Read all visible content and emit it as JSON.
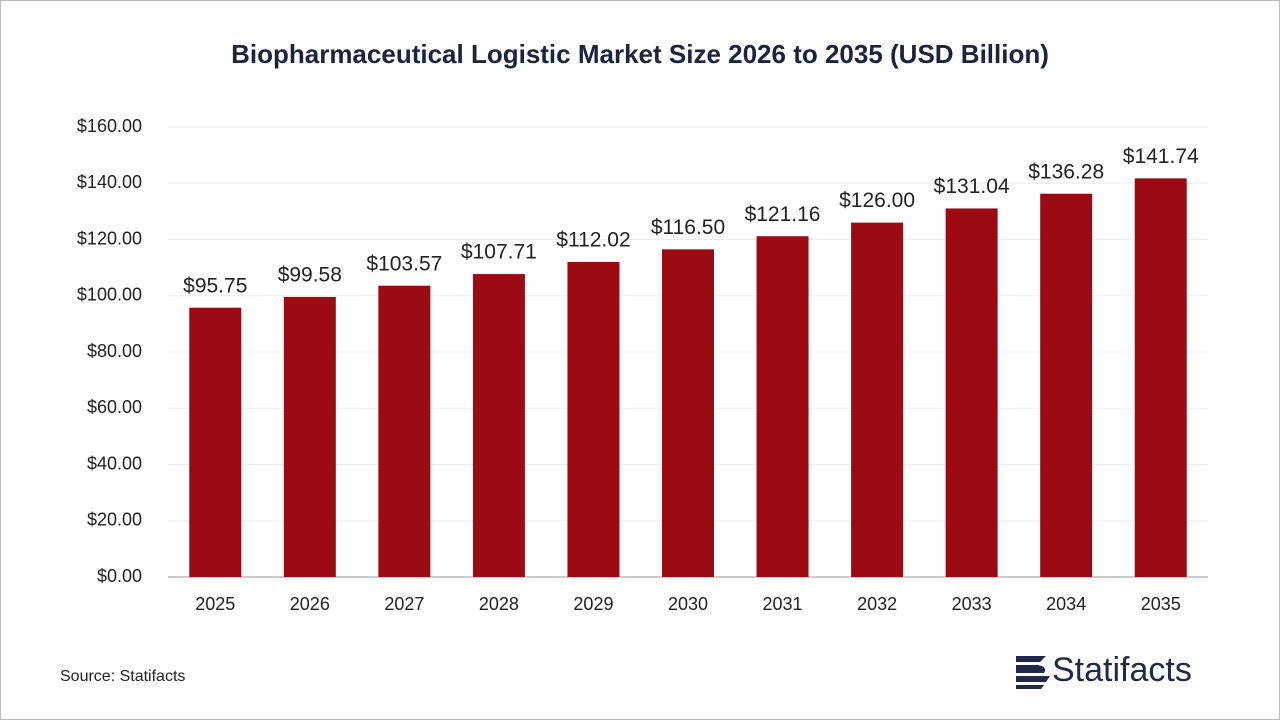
{
  "chart_data": {
    "type": "bar",
    "title": "Biopharmaceutical Logistic Market Size 2026 to 2035 (USD Billion)",
    "categories": [
      "2025",
      "2026",
      "2027",
      "2028",
      "2029",
      "2030",
      "2031",
      "2032",
      "2033",
      "2034",
      "2035"
    ],
    "values": [
      95.75,
      99.58,
      103.57,
      107.71,
      112.02,
      116.5,
      121.16,
      126.0,
      131.04,
      136.28,
      141.74
    ],
    "value_labels": [
      "$95.75",
      "$99.58",
      "$103.57",
      "$107.71",
      "$112.02",
      "$116.50",
      "$121.16",
      "$126.00",
      "$131.04",
      "$136.28",
      "$141.74"
    ],
    "color": "#9c0b13",
    "ylim": [
      0,
      160
    ],
    "yticks": [
      {
        "value": 0,
        "label": "$0.00"
      },
      {
        "value": 20,
        "label": "$20.00"
      },
      {
        "value": 40,
        "label": "$40.00"
      },
      {
        "value": 60,
        "label": "$60.00"
      },
      {
        "value": 80,
        "label": "$80.00"
      },
      {
        "value": 100,
        "label": "$100.00"
      },
      {
        "value": 120,
        "label": "$120.00"
      },
      {
        "value": 140,
        "label": "$140.00"
      },
      {
        "value": 160,
        "label": "$160.00"
      }
    ],
    "grid": true
  },
  "source": "Source: Statifacts",
  "logo": "Statifacts"
}
